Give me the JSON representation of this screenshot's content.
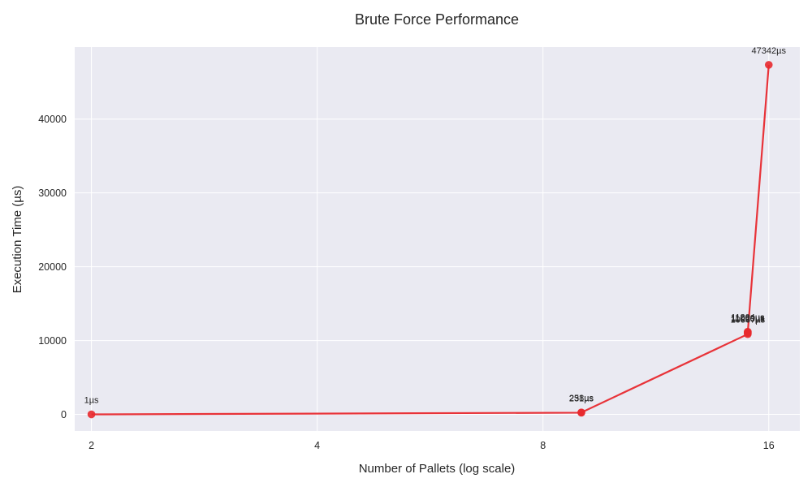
{
  "chart_data": {
    "type": "line",
    "title": "Brute Force Performance",
    "xlabel": "Number of Pallets (log scale)",
    "ylabel": "Execution Time (µs)",
    "x_scale": "log2",
    "xlim": [
      1.9,
      17.6
    ],
    "ylim": [
      -2250,
      49750
    ],
    "x_ticks": [
      2,
      4,
      8,
      16
    ],
    "x_tick_labels": [
      "2",
      "4",
      "8",
      "16"
    ],
    "y_ticks": [
      0,
      10000,
      20000,
      30000,
      40000
    ],
    "y_tick_labels": [
      "0",
      "10000",
      "20000",
      "30000",
      "40000"
    ],
    "grid": true,
    "series": [
      {
        "color": "#e8292e",
        "points": [
          {
            "x": 2,
            "y": 1,
            "label": "1µs"
          },
          {
            "x": 9,
            "y": 231,
            "label": "231µs"
          },
          {
            "x": 9,
            "y": 258,
            "label": "258µs"
          },
          {
            "x": 15,
            "y": 10867,
            "label": "10867µs"
          },
          {
            "x": 15,
            "y": 11020,
            "label": "11020µs"
          },
          {
            "x": 15,
            "y": 11204,
            "label": "11204µs"
          },
          {
            "x": 15,
            "y": 11089,
            "label": "11089µs"
          },
          {
            "x": 16,
            "y": 47342,
            "label": "47342µs"
          }
        ]
      }
    ]
  }
}
